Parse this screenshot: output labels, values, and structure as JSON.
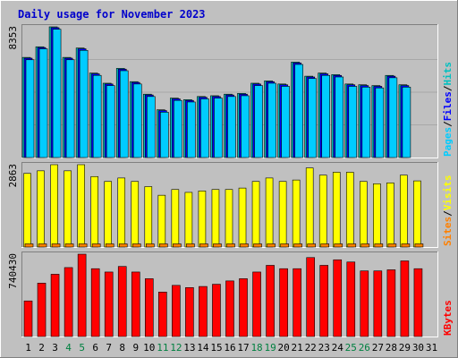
{
  "title": "Daily usage for November 2023",
  "colors": {
    "background": "#C0C0C0",
    "frame": "#FFFFFF",
    "title": "#0000CC",
    "hits": "#00C0C0",
    "files": "#0000FF",
    "pages": "#00CCFF",
    "visits": "#FFFF00",
    "sites": "#FF8000",
    "kbytes": "#FF0000",
    "weekend_label": "#008040",
    "weekday_label": "#000000",
    "slash": "#000000"
  },
  "chart_data": [
    {
      "type": "bar",
      "panel": "hits-files-pages",
      "y_tick_label": "8353",
      "ylim": [
        0,
        8353
      ],
      "right_label_parts": [
        "Pages",
        "/",
        "Files",
        "/",
        "Hits"
      ],
      "categories": [
        "1",
        "2",
        "3",
        "4",
        "5",
        "6",
        "7",
        "8",
        "9",
        "10",
        "11",
        "12",
        "13",
        "14",
        "15",
        "16",
        "17",
        "18",
        "19",
        "20",
        "21",
        "22",
        "23",
        "24",
        "25",
        "26",
        "27",
        "28",
        "29",
        "30",
        "31"
      ],
      "weekend_days": [
        "4",
        "5",
        "11",
        "12",
        "18",
        "19",
        "25",
        "26"
      ],
      "series": [
        {
          "name": "Hits",
          "values": [
            6400,
            7080,
            8353,
            6400,
            7000,
            5400,
            4750,
            5700,
            4850,
            4050,
            3050,
            3800,
            3700,
            3900,
            3950,
            4050,
            4100,
            4750,
            4900,
            4700,
            6100,
            5200,
            5400,
            5300,
            4700,
            4650,
            4600,
            5250,
            4650,
            0,
            0
          ]
        },
        {
          "name": "Files",
          "values": [
            6350,
            7030,
            8300,
            6350,
            6950,
            5350,
            4700,
            5650,
            4800,
            4000,
            3000,
            3750,
            3650,
            3850,
            3900,
            4000,
            4050,
            4700,
            4850,
            4650,
            6050,
            5150,
            5350,
            5250,
            4650,
            4600,
            4550,
            5200,
            4600,
            0,
            0
          ]
        },
        {
          "name": "Pages",
          "values": [
            6250,
            6950,
            8200,
            6250,
            6850,
            5250,
            4600,
            5550,
            4700,
            3900,
            2900,
            3650,
            3550,
            3750,
            3800,
            3900,
            3950,
            4600,
            4750,
            4550,
            5950,
            5050,
            5250,
            5150,
            4550,
            4500,
            4450,
            5100,
            4500,
            0,
            0
          ]
        }
      ]
    },
    {
      "type": "bar",
      "panel": "visits-sites",
      "y_tick_label": "2863",
      "ylim": [
        0,
        2863
      ],
      "right_label_parts": [
        "Sites",
        "/",
        "Visits"
      ],
      "categories": [
        "1",
        "2",
        "3",
        "4",
        "5",
        "6",
        "7",
        "8",
        "9",
        "10",
        "11",
        "12",
        "13",
        "14",
        "15",
        "16",
        "17",
        "18",
        "19",
        "20",
        "21",
        "22",
        "23",
        "24",
        "25",
        "26",
        "27",
        "28",
        "29",
        "30",
        "31"
      ],
      "series": [
        {
          "name": "Visits",
          "values": [
            2560,
            2650,
            2863,
            2650,
            2863,
            2450,
            2280,
            2400,
            2280,
            2100,
            1800,
            2000,
            1900,
            1950,
            2000,
            2000,
            2050,
            2280,
            2400,
            2280,
            2330,
            2750,
            2500,
            2600,
            2600,
            2280,
            2200,
            2230,
            2500,
            2300,
            0
          ]
        },
        {
          "name": "Sites",
          "values": [
            110,
            110,
            110,
            110,
            110,
            110,
            110,
            110,
            110,
            110,
            110,
            110,
            110,
            110,
            110,
            110,
            110,
            110,
            110,
            110,
            110,
            110,
            110,
            110,
            110,
            110,
            110,
            110,
            110,
            110,
            0
          ]
        }
      ]
    },
    {
      "type": "bar",
      "panel": "kbytes",
      "y_tick_label": "740430",
      "ylim": [
        0,
        740430
      ],
      "right_label_parts": [
        "KBytes"
      ],
      "categories": [
        "1",
        "2",
        "3",
        "4",
        "5",
        "6",
        "7",
        "8",
        "9",
        "10",
        "11",
        "12",
        "13",
        "14",
        "15",
        "16",
        "17",
        "18",
        "19",
        "20",
        "21",
        "22",
        "23",
        "24",
        "25",
        "26",
        "27",
        "28",
        "29",
        "30",
        "31"
      ],
      "series": [
        {
          "name": "KBytes",
          "values": [
            320000,
            480000,
            560000,
            620000,
            740430,
            610000,
            580000,
            630000,
            580000,
            520000,
            400000,
            460000,
            440000,
            450000,
            470000,
            500000,
            520000,
            580000,
            640000,
            610000,
            610000,
            710000,
            640000,
            690000,
            670000,
            590000,
            590000,
            600000,
            680000,
            610000,
            0
          ]
        }
      ]
    }
  ]
}
